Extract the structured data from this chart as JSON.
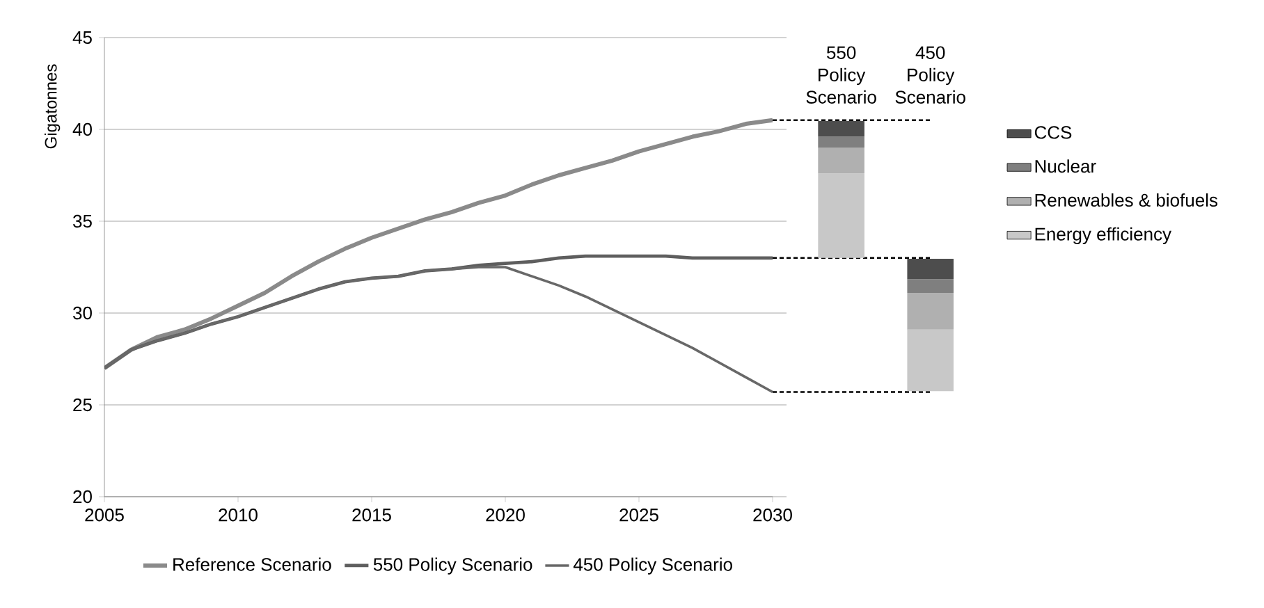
{
  "chart_data": [
    {
      "type": "line",
      "ylabel": "Gigatonnes",
      "x": [
        2005,
        2006,
        2007,
        2008,
        2009,
        2010,
        2011,
        2012,
        2013,
        2014,
        2015,
        2016,
        2017,
        2018,
        2019,
        2020,
        2021,
        2022,
        2023,
        2024,
        2025,
        2026,
        2027,
        2028,
        2029,
        2030
      ],
      "series": [
        {
          "name": "Reference Scenario",
          "color": "#8a8a8a",
          "values": [
            27.0,
            28.0,
            28.7,
            29.1,
            29.7,
            30.4,
            31.1,
            32.0,
            32.8,
            33.5,
            34.1,
            34.6,
            35.1,
            35.5,
            36.0,
            36.4,
            37.0,
            37.5,
            37.9,
            38.3,
            38.8,
            39.2,
            39.6,
            39.9,
            40.3,
            40.5
          ]
        },
        {
          "name": "550 Policy Scenario",
          "color": "#5e5e5e",
          "values": [
            27.0,
            28.0,
            28.5,
            28.9,
            29.4,
            29.8,
            30.3,
            30.8,
            31.3,
            31.7,
            31.9,
            32.0,
            32.3,
            32.4,
            32.6,
            32.7,
            32.8,
            33.0,
            33.1,
            33.1,
            33.1,
            33.1,
            33.0,
            33.0,
            33.0,
            33.0
          ]
        },
        {
          "name": "450 Policy Scenario",
          "color": "#686868",
          "values": [
            27.0,
            28.0,
            28.5,
            28.9,
            29.4,
            29.8,
            30.3,
            30.8,
            31.3,
            31.7,
            31.9,
            32.0,
            32.3,
            32.4,
            32.5,
            32.5,
            32.0,
            31.5,
            30.9,
            30.2,
            29.5,
            28.8,
            28.1,
            27.3,
            26.5,
            25.7
          ]
        }
      ],
      "xlim": [
        2005,
        2030
      ],
      "ylim": [
        20,
        45
      ],
      "xticks": [
        2005,
        2010,
        2015,
        2020,
        2025,
        2030
      ],
      "yticks": [
        20,
        25,
        30,
        35,
        40,
        45
      ],
      "grid": "y",
      "legend": "bottom"
    },
    {
      "type": "bar",
      "categories": [
        "550 Policy Scenario",
        "450 Policy Scenario"
      ],
      "series": [
        {
          "name": "Energy efficiency",
          "color": "#c8c8c8",
          "base": [
            33.0,
            25.75
          ],
          "values": [
            4.6,
            3.35
          ]
        },
        {
          "name": "Renewables & biofuels",
          "color": "#b0b0b0",
          "base": [
            37.6,
            29.1
          ],
          "values": [
            1.4,
            2.0
          ]
        },
        {
          "name": "Nuclear",
          "color": "#7f7f7f",
          "base": [
            39.0,
            31.1
          ],
          "values": [
            0.6,
            0.75
          ]
        },
        {
          "name": "CCS",
          "color": "#4d4d4d",
          "base": [
            39.6,
            31.85
          ],
          "values": [
            0.85,
            1.1
          ]
        }
      ],
      "ylim": [
        20,
        45
      ],
      "yticks": [
        {
          "value": 20,
          "label": null
        },
        {
          "value": 25,
          "label": null
        },
        {
          "value": 30,
          "label": null
        },
        {
          "value": 35,
          "label": null
        },
        {
          "value": 40,
          "label": null
        },
        {
          "value": 45,
          "label": null
        }
      ],
      "tick_labels": "x",
      "legend": "right",
      "ref_lines": [
        {
          "axis": "y",
          "value": 40.5,
          "color": "#000000",
          "line_style": "dashed"
        },
        {
          "axis": "y",
          "value": 33.0,
          "color": "#000000",
          "line_style": "dashed"
        },
        {
          "axis": "y",
          "value": 25.7,
          "color": "#000000",
          "line_style": "dashed"
        }
      ]
    }
  ]
}
